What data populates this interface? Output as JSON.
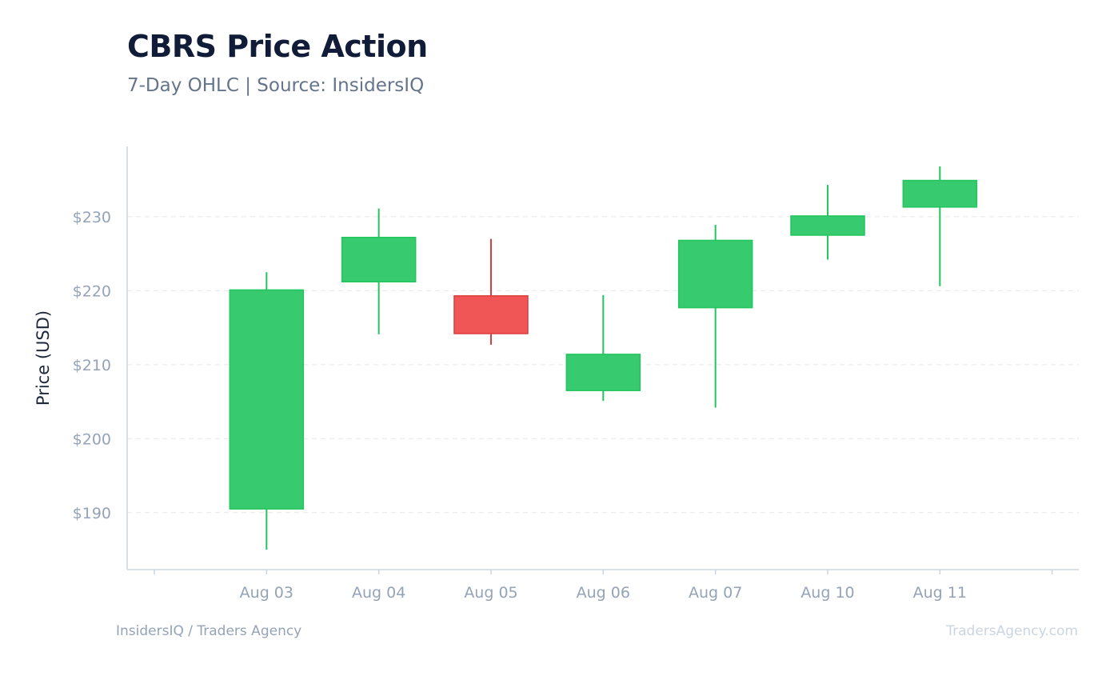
{
  "header": {
    "title": "CBRS Price Action",
    "subtitle": "7-Day OHLC | Source: InsidersIQ"
  },
  "footer": {
    "left": "InsidersIQ / Traders Agency",
    "right": "TradersAgency.com"
  },
  "colors": {
    "up": "#22c55e",
    "up_body": "#38ca6e",
    "down": "#dc3c3c",
    "down_body": "#f05656",
    "grid": "#e5e7eb",
    "axis": "#cbd5e1"
  },
  "chart_data": {
    "type": "candlestick",
    "ylabel": "Price (USD)",
    "ylim": [
      182.3,
      239.5
    ],
    "yticks": [
      190,
      200,
      210,
      220,
      230
    ],
    "ytick_labels": [
      "$190",
      "$200",
      "$210",
      "$220",
      "$230"
    ],
    "grid": true,
    "categories": [
      "Aug 03",
      "Aug 04",
      "Aug 05",
      "Aug 06",
      "Aug 07",
      "Aug 10",
      "Aug 11"
    ],
    "open": [
      190.5,
      221.2,
      219.3,
      206.5,
      217.7,
      227.5,
      231.3
    ],
    "high": [
      222.5,
      231.1,
      227.0,
      219.4,
      228.9,
      234.3,
      236.8
    ],
    "low": [
      185.0,
      214.1,
      212.7,
      205.1,
      204.2,
      224.2,
      220.6
    ],
    "close": [
      220.1,
      227.2,
      214.2,
      211.4,
      226.8,
      230.1,
      234.9
    ]
  }
}
